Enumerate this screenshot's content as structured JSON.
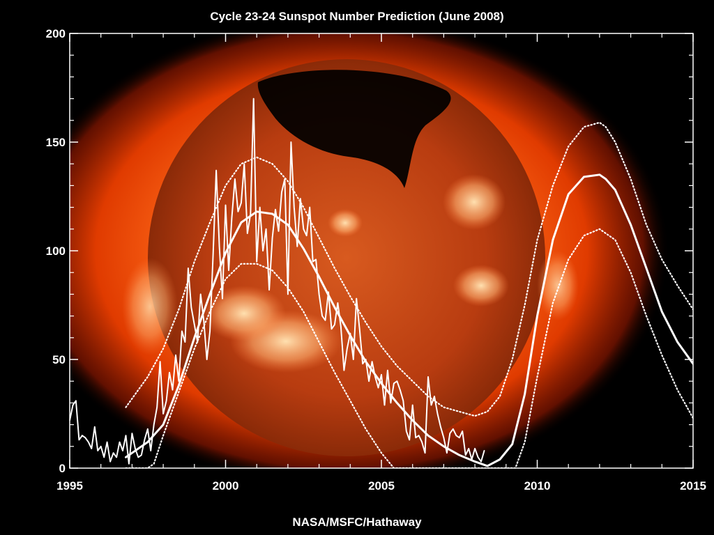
{
  "title": "Cycle 23-24 Sunspot Number Prediction (June 2008)",
  "credit": "NASA/MSFC/Hathaway",
  "chart_data": {
    "type": "line",
    "title": "Cycle 23-24 Sunspot Number Prediction (June 2008)",
    "xlabel": "",
    "ylabel": "",
    "xlim": [
      1995,
      2015
    ],
    "ylim": [
      0,
      200
    ],
    "x_ticks": [
      1995,
      2000,
      2005,
      2010,
      2015
    ],
    "y_ticks": [
      0,
      50,
      100,
      150,
      200
    ],
    "background": "sun-xray-image",
    "series": [
      {
        "role": "monthly-observed",
        "style": "solid-thin",
        "color": "#ffffff",
        "x": [
          1995.0,
          1995.1,
          1995.2,
          1995.3,
          1995.4,
          1995.5,
          1995.6,
          1995.7,
          1995.8,
          1995.9,
          1996.0,
          1996.1,
          1996.2,
          1996.3,
          1996.4,
          1996.5,
          1996.6,
          1996.7,
          1996.8,
          1996.9,
          1997.0,
          1997.1,
          1997.2,
          1997.3,
          1997.4,
          1997.5,
          1997.6,
          1997.7,
          1997.8,
          1997.9,
          1998.0,
          1998.1,
          1998.2,
          1998.3,
          1998.4,
          1998.5,
          1998.6,
          1998.7,
          1998.8,
          1998.9,
          1999.0,
          1999.1,
          1999.2,
          1999.3,
          1999.4,
          1999.5,
          1999.6,
          1999.7,
          1999.8,
          1999.9,
          2000.0,
          2000.1,
          2000.2,
          2000.3,
          2000.4,
          2000.5,
          2000.6,
          2000.7,
          2000.8,
          2000.9,
          2001.0,
          2001.1,
          2001.2,
          2001.3,
          2001.4,
          2001.5,
          2001.6,
          2001.7,
          2001.8,
          2001.9,
          2002.0,
          2002.1,
          2002.2,
          2002.3,
          2002.4,
          2002.5,
          2002.6,
          2002.7,
          2002.8,
          2002.9,
          2003.0,
          2003.1,
          2003.2,
          2003.3,
          2003.4,
          2003.5,
          2003.6,
          2003.7,
          2003.8,
          2003.9,
          2004.0,
          2004.1,
          2004.2,
          2004.3,
          2004.4,
          2004.5,
          2004.6,
          2004.7,
          2004.8,
          2004.9,
          2005.0,
          2005.1,
          2005.2,
          2005.3,
          2005.4,
          2005.5,
          2005.6,
          2005.7,
          2005.8,
          2005.9,
          2006.0,
          2006.1,
          2006.2,
          2006.3,
          2006.4,
          2006.5,
          2006.6,
          2006.7,
          2006.8,
          2006.9,
          2007.0,
          2007.1,
          2007.2,
          2007.3,
          2007.4,
          2007.5,
          2007.6,
          2007.7,
          2007.8,
          2007.9,
          2008.0,
          2008.1,
          2008.2,
          2008.3
        ],
        "y": [
          22,
          29,
          31,
          13,
          15,
          14,
          12,
          9,
          19,
          8,
          10,
          5,
          12,
          3,
          7,
          5,
          12,
          8,
          15,
          2,
          16,
          9,
          5,
          6,
          13,
          18,
          8,
          20,
          28,
          49,
          25,
          31,
          44,
          36,
          52,
          40,
          63,
          58,
          92,
          74,
          66,
          58,
          80,
          68,
          50,
          63,
          98,
          137,
          102,
          78,
          121,
          91,
          115,
          133,
          118,
          122,
          140,
          108,
          117,
          170,
          95,
          120,
          100,
          110,
          82,
          106,
          119,
          109,
          127,
          133,
          80,
          150,
          120,
          102,
          124,
          110,
          107,
          120,
          95,
          96,
          80,
          70,
          68,
          81,
          64,
          66,
          76,
          65,
          45,
          55,
          62,
          50,
          78,
          64,
          48,
          50,
          40,
          49,
          42,
          37,
          43,
          29,
          45,
          30,
          39,
          40,
          36,
          31,
          17,
          13,
          29,
          14,
          15,
          12,
          7,
          42,
          29,
          33,
          25,
          19,
          14,
          7,
          16,
          18,
          15,
          14,
          17,
          6,
          9,
          4,
          9,
          5,
          3,
          8
        ]
      },
      {
        "role": "smoothed-fit",
        "style": "solid-thick",
        "color": "#ffffff",
        "x": [
          1996.8,
          1997.0,
          1997.5,
          1998.0,
          1998.5,
          1999.0,
          1999.5,
          2000.0,
          2000.5,
          2001.0,
          2001.5,
          2002.0,
          2002.5,
          2003.0,
          2003.5,
          2004.0,
          2004.5,
          2005.0,
          2005.5,
          2006.0,
          2006.5,
          2007.0,
          2007.5,
          2008.0,
          2008.4,
          2008.8,
          2009.2,
          2009.6,
          2010.0,
          2010.5,
          2011.0,
          2011.5,
          2012.0,
          2012.2,
          2012.5,
          2013.0,
          2013.5,
          2014.0,
          2014.5,
          2015.0
        ],
        "y": [
          5,
          7,
          12,
          20,
          38,
          60,
          80,
          99,
          113,
          118,
          117,
          112,
          101,
          88,
          74,
          61,
          49,
          39,
          30,
          22,
          15,
          10,
          6,
          3,
          1,
          4,
          11,
          34,
          70,
          105,
          126,
          134,
          135,
          133,
          128,
          112,
          92,
          72,
          58,
          48
        ]
      },
      {
        "role": "upper-bound",
        "style": "dotted",
        "color": "#ffffff",
        "x": [
          1996.8,
          1997.0,
          1997.5,
          1998.0,
          1998.5,
          1999.0,
          1999.5,
          2000.0,
          2000.5,
          2001.0,
          2001.5,
          2002.0,
          2002.5,
          2003.0,
          2003.5,
          2004.0,
          2004.5,
          2005.0,
          2005.5,
          2006.0,
          2006.5,
          2007.0,
          2007.5,
          2008.0,
          2008.4,
          2008.8,
          2009.2,
          2009.6,
          2010.0,
          2010.5,
          2011.0,
          2011.5,
          2012.0,
          2012.2,
          2012.5,
          2013.0,
          2013.5,
          2014.0,
          2014.5,
          2015.0
        ],
        "y": [
          28,
          32,
          42,
          55,
          73,
          95,
          113,
          130,
          140,
          143,
          140,
          132,
          120,
          106,
          92,
          79,
          67,
          56,
          47,
          40,
          33,
          28,
          26,
          24,
          26,
          33,
          50,
          75,
          105,
          130,
          148,
          157,
          159,
          157,
          150,
          133,
          112,
          96,
          84,
          73
        ]
      },
      {
        "role": "lower-bound",
        "style": "dotted",
        "color": "#ffffff",
        "x": [
          1996.8,
          1997.0,
          1997.5,
          1997.7,
          1998.0,
          1998.5,
          1999.0,
          1999.5,
          2000.0,
          2000.5,
          2001.0,
          2001.5,
          2002.0,
          2002.5,
          2003.0,
          2003.5,
          2004.0,
          2004.5,
          2005.0,
          2005.4,
          2005.8,
          2006.0,
          2007.0,
          2008.0,
          2009.0,
          2009.3,
          2009.6,
          2010.0,
          2010.5,
          2011.0,
          2011.5,
          2012.0,
          2012.5,
          2013.0,
          2013.5,
          2014.0,
          2014.5,
          2015.0
        ],
        "y": [
          0,
          0,
          0,
          2,
          15,
          35,
          55,
          72,
          87,
          94,
          94,
          91,
          83,
          72,
          58,
          44,
          31,
          18,
          7,
          0,
          0,
          0,
          0,
          0,
          0,
          0,
          12,
          42,
          76,
          96,
          107,
          110,
          105,
          90,
          70,
          52,
          36,
          23
        ]
      }
    ]
  }
}
